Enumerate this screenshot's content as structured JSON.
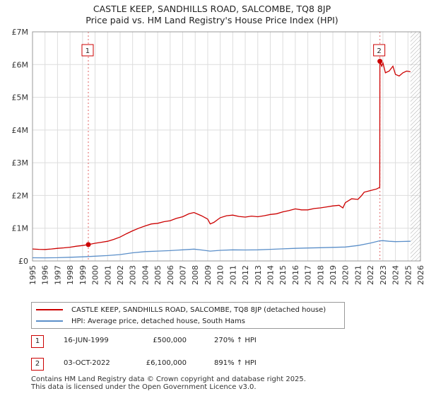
{
  "title": {
    "line1": "CASTLE KEEP, SANDHILLS ROAD, SALCOMBE, TQ8 8JP",
    "line2": "Price paid vs. HM Land Registry's House Price Index (HPI)"
  },
  "colors": {
    "property": "#cc0000",
    "hpi": "#5b8fc9",
    "grid": "#dddddd",
    "hatch": "#aaaaaa"
  },
  "chart_data": {
    "type": "line",
    "title": "Price paid vs. HM Land Registry's House Price Index (HPI)",
    "xlabel": "",
    "ylabel": "",
    "xlim": [
      1995,
      2026
    ],
    "ylim": [
      0,
      7000000
    ],
    "grid": true,
    "future_hatch_from": 2025.2,
    "x_ticks": [
      "1995",
      "1996",
      "1997",
      "1998",
      "1999",
      "2000",
      "2001",
      "2002",
      "2003",
      "2004",
      "2005",
      "2006",
      "2007",
      "2008",
      "2009",
      "2010",
      "2011",
      "2012",
      "2013",
      "2014",
      "2015",
      "2016",
      "2017",
      "2018",
      "2019",
      "2020",
      "2021",
      "2022",
      "2023",
      "2024",
      "2025",
      "2026"
    ],
    "y_ticks": [
      {
        "value": 0,
        "label": "£0"
      },
      {
        "value": 1000000,
        "label": "£1M"
      },
      {
        "value": 2000000,
        "label": "£2M"
      },
      {
        "value": 3000000,
        "label": "£3M"
      },
      {
        "value": 4000000,
        "label": "£4M"
      },
      {
        "value": 5000000,
        "label": "£5M"
      },
      {
        "value": 6000000,
        "label": "£6M"
      },
      {
        "value": 7000000,
        "label": "£7M"
      }
    ],
    "series": [
      {
        "name": "CASTLE KEEP, SANDHILLS ROAD, SALCOMBE, TQ8 8JP (detached house)",
        "color": "#cc0000",
        "x": [
          1995.0,
          1995.5,
          1996.0,
          1996.5,
          1997.0,
          1997.5,
          1998.0,
          1998.5,
          1999.0,
          1999.46,
          2000.0,
          2000.5,
          2001.0,
          2001.5,
          2002.0,
          2002.5,
          2003.0,
          2003.5,
          2004.0,
          2004.5,
          2005.0,
          2005.5,
          2006.0,
          2006.5,
          2007.0,
          2007.5,
          2007.9,
          2008.5,
          2009.0,
          2009.2,
          2009.5,
          2010.0,
          2010.5,
          2011.0,
          2011.5,
          2012.0,
          2012.5,
          2013.0,
          2013.5,
          2014.0,
          2014.5,
          2015.0,
          2015.5,
          2016.0,
          2016.5,
          2017.0,
          2017.5,
          2018.0,
          2018.5,
          2019.0,
          2019.5,
          2019.8,
          2020.0,
          2020.5,
          2021.0,
          2021.3,
          2021.5,
          2022.0,
          2022.5,
          2022.75,
          2022.76,
          2022.9,
          2023.0,
          2023.2,
          2023.5,
          2023.8,
          2024.0,
          2024.3,
          2024.6,
          2024.9,
          2025.2
        ],
        "values": [
          365000,
          355000,
          350000,
          365000,
          385000,
          400000,
          420000,
          450000,
          470000,
          500000,
          540000,
          570000,
          600000,
          660000,
          730000,
          830000,
          920000,
          1000000,
          1070000,
          1130000,
          1150000,
          1200000,
          1230000,
          1300000,
          1350000,
          1440000,
          1480000,
          1380000,
          1280000,
          1130000,
          1180000,
          1320000,
          1380000,
          1400000,
          1360000,
          1340000,
          1370000,
          1350000,
          1380000,
          1420000,
          1440000,
          1500000,
          1540000,
          1590000,
          1560000,
          1560000,
          1600000,
          1620000,
          1650000,
          1680000,
          1700000,
          1620000,
          1780000,
          1900000,
          1880000,
          2000000,
          2100000,
          2150000,
          2200000,
          2250000,
          6100000,
          5950000,
          6050000,
          5750000,
          5800000,
          5950000,
          5700000,
          5650000,
          5750000,
          5800000,
          5780000
        ]
      },
      {
        "name": "HPI: Average price, detached house, South Hams",
        "color": "#5b8fc9",
        "x": [
          1995.0,
          1996.0,
          1997.0,
          1998.0,
          1999.0,
          1999.46,
          2000.0,
          2001.0,
          2002.0,
          2003.0,
          2004.0,
          2005.0,
          2006.0,
          2007.0,
          2007.9,
          2008.5,
          2009.2,
          2010.0,
          2011.0,
          2012.0,
          2013.0,
          2014.0,
          2015.0,
          2016.0,
          2017.0,
          2018.0,
          2019.0,
          2020.0,
          2021.0,
          2022.0,
          2022.75,
          2023.0,
          2023.5,
          2024.0,
          2024.5,
          2025.2
        ],
        "values": [
          98000,
          95000,
          100000,
          112000,
          125000,
          135000,
          145000,
          165000,
          195000,
          248000,
          285000,
          300000,
          315000,
          340000,
          360000,
          335000,
          300000,
          325000,
          340000,
          335000,
          340000,
          355000,
          370000,
          385000,
          395000,
          405000,
          415000,
          425000,
          470000,
          545000,
          615000,
          620000,
          600000,
          590000,
          595000,
          600000
        ]
      }
    ],
    "sales": [
      {
        "label": "1",
        "x": 1999.46,
        "y": 500000
      },
      {
        "label": "2",
        "x": 2022.76,
        "y": 6100000
      }
    ]
  },
  "legend": {
    "property": "CASTLE KEEP, SANDHILLS ROAD, SALCOMBE, TQ8 8JP (detached house)",
    "hpi": "HPI: Average price, detached house, South Hams"
  },
  "sales_table": [
    {
      "num": "1",
      "date": "16-JUN-1999",
      "price": "£500,000",
      "hpi": "270% ↑ HPI"
    },
    {
      "num": "2",
      "date": "03-OCT-2022",
      "price": "£6,100,000",
      "hpi": "891% ↑ HPI"
    }
  ],
  "footer": {
    "line1": "Contains HM Land Registry data © Crown copyright and database right 2025.",
    "line2": "This data is licensed under the Open Government Licence v3.0."
  }
}
